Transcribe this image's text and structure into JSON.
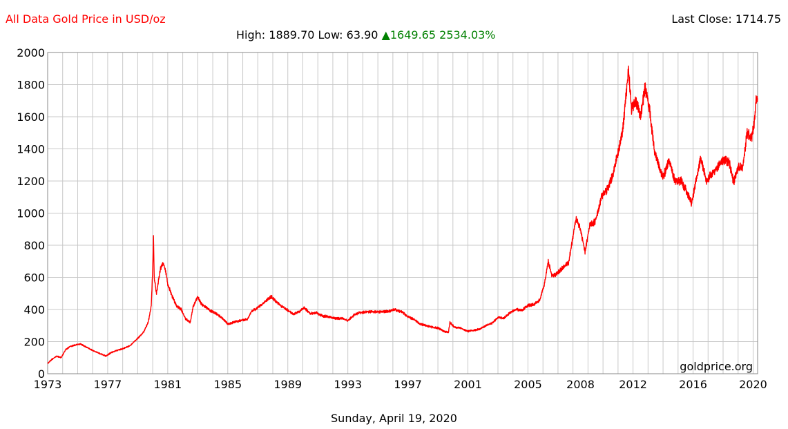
{
  "header": {
    "title": "All Data Gold Price in USD/oz",
    "last_close_label": "Last Close:",
    "last_close_value": "1714.75",
    "high_label": "High:",
    "high_value": "1889.70",
    "low_label": "Low:",
    "low_value": "63.90",
    "change_arrow": "▲",
    "change_value": "1649.65",
    "change_percent": "2534.03%"
  },
  "footer": {
    "date": "Sunday, April 19, 2020"
  },
  "watermark": "goldprice.org",
  "colors": {
    "line": "#ff0000",
    "grid": "#c8c8c8",
    "title": "#ff0000",
    "change": "#008000"
  },
  "chart_data": {
    "type": "line",
    "title": "All Data Gold Price in USD/oz",
    "xlabel": "",
    "ylabel": "",
    "xlim": [
      1973,
      2020.3
    ],
    "ylim": [
      0,
      2000
    ],
    "x_ticks": [
      "1973",
      "1977",
      "1981",
      "1985",
      "1989",
      "1993",
      "1997",
      "2001",
      "2005",
      "2008",
      "2012",
      "2016",
      "2020"
    ],
    "x_tick_years": [
      1973,
      1977,
      1981,
      1985,
      1989,
      1993,
      1997,
      2001,
      2005,
      2008.5,
      2012,
      2016,
      2020
    ],
    "y_ticks": [
      0,
      200,
      400,
      600,
      800,
      1000,
      1200,
      1400,
      1600,
      1800,
      2000
    ],
    "grid": true,
    "series": [
      {
        "values": [
          [
            1973.0,
            65
          ],
          [
            1973.3,
            90
          ],
          [
            1973.6,
            110
          ],
          [
            1973.9,
            100
          ],
          [
            1974.2,
            150
          ],
          [
            1974.5,
            170
          ],
          [
            1974.9,
            180
          ],
          [
            1975.2,
            185
          ],
          [
            1975.6,
            165
          ],
          [
            1976.0,
            145
          ],
          [
            1976.5,
            125
          ],
          [
            1976.9,
            110
          ],
          [
            1977.2,
            130
          ],
          [
            1977.6,
            145
          ],
          [
            1978.0,
            155
          ],
          [
            1978.5,
            175
          ],
          [
            1979.0,
            220
          ],
          [
            1979.4,
            260
          ],
          [
            1979.7,
            320
          ],
          [
            1979.9,
            420
          ],
          [
            1980.0,
            650
          ],
          [
            1980.05,
            850
          ],
          [
            1980.1,
            600
          ],
          [
            1980.25,
            500
          ],
          [
            1980.5,
            650
          ],
          [
            1980.7,
            690
          ],
          [
            1980.85,
            640
          ],
          [
            1981.0,
            560
          ],
          [
            1981.3,
            480
          ],
          [
            1981.6,
            420
          ],
          [
            1981.9,
            400
          ],
          [
            1982.2,
            340
          ],
          [
            1982.5,
            320
          ],
          [
            1982.7,
            420
          ],
          [
            1983.0,
            480
          ],
          [
            1983.2,
            440
          ],
          [
            1983.5,
            415
          ],
          [
            1983.9,
            390
          ],
          [
            1984.3,
            370
          ],
          [
            1984.7,
            340
          ],
          [
            1985.0,
            310
          ],
          [
            1985.4,
            320
          ],
          [
            1985.8,
            330
          ],
          [
            1986.3,
            340
          ],
          [
            1986.6,
            390
          ],
          [
            1987.0,
            410
          ],
          [
            1987.5,
            450
          ],
          [
            1987.9,
            480
          ],
          [
            1988.2,
            450
          ],
          [
            1988.6,
            420
          ],
          [
            1989.0,
            395
          ],
          [
            1989.4,
            370
          ],
          [
            1989.8,
            390
          ],
          [
            1990.1,
            410
          ],
          [
            1990.5,
            375
          ],
          [
            1990.9,
            380
          ],
          [
            1991.3,
            360
          ],
          [
            1991.7,
            355
          ],
          [
            1992.2,
            345
          ],
          [
            1992.6,
            345
          ],
          [
            1993.0,
            330
          ],
          [
            1993.4,
            365
          ],
          [
            1993.8,
            380
          ],
          [
            1994.3,
            385
          ],
          [
            1994.8,
            385
          ],
          [
            1995.3,
            385
          ],
          [
            1995.8,
            390
          ],
          [
            1996.1,
            400
          ],
          [
            1996.6,
            385
          ],
          [
            1997.0,
            355
          ],
          [
            1997.4,
            340
          ],
          [
            1997.8,
            310
          ],
          [
            1998.2,
            300
          ],
          [
            1998.6,
            290
          ],
          [
            1999.0,
            285
          ],
          [
            1999.4,
            265
          ],
          [
            1999.7,
            255
          ],
          [
            1999.8,
            320
          ],
          [
            2000.1,
            290
          ],
          [
            2000.5,
            285
          ],
          [
            2001.0,
            265
          ],
          [
            2001.4,
            270
          ],
          [
            2001.8,
            280
          ],
          [
            2002.2,
            300
          ],
          [
            2002.6,
            315
          ],
          [
            2003.0,
            350
          ],
          [
            2003.4,
            345
          ],
          [
            2003.8,
            380
          ],
          [
            2004.2,
            400
          ],
          [
            2004.6,
            395
          ],
          [
            2005.0,
            425
          ],
          [
            2005.4,
            430
          ],
          [
            2005.8,
            460
          ],
          [
            2006.1,
            560
          ],
          [
            2006.35,
            700
          ],
          [
            2006.6,
            610
          ],
          [
            2006.9,
            620
          ],
          [
            2007.3,
            660
          ],
          [
            2007.7,
            690
          ],
          [
            2008.0,
            850
          ],
          [
            2008.2,
            970
          ],
          [
            2008.5,
            900
          ],
          [
            2008.8,
            760
          ],
          [
            2009.1,
            920
          ],
          [
            2009.5,
            950
          ],
          [
            2009.9,
            1100
          ],
          [
            2010.3,
            1150
          ],
          [
            2010.7,
            1250
          ],
          [
            2011.0,
            1380
          ],
          [
            2011.3,
            1500
          ],
          [
            2011.6,
            1800
          ],
          [
            2011.7,
            1889
          ],
          [
            2011.9,
            1650
          ],
          [
            2012.2,
            1700
          ],
          [
            2012.5,
            1600
          ],
          [
            2012.8,
            1780
          ],
          [
            2013.1,
            1650
          ],
          [
            2013.4,
            1400
          ],
          [
            2013.7,
            1300
          ],
          [
            2014.0,
            1220
          ],
          [
            2014.4,
            1330
          ],
          [
            2014.8,
            1200
          ],
          [
            2015.2,
            1200
          ],
          [
            2015.6,
            1130
          ],
          [
            2015.9,
            1060
          ],
          [
            2016.2,
            1200
          ],
          [
            2016.5,
            1340
          ],
          [
            2016.9,
            1200
          ],
          [
            2017.2,
            1240
          ],
          [
            2017.6,
            1280
          ],
          [
            2018.0,
            1330
          ],
          [
            2018.4,
            1320
          ],
          [
            2018.7,
            1190
          ],
          [
            2019.0,
            1290
          ],
          [
            2019.3,
            1280
          ],
          [
            2019.6,
            1500
          ],
          [
            2019.9,
            1470
          ],
          [
            2020.1,
            1580
          ],
          [
            2020.2,
            1700
          ],
          [
            2020.3,
            1715
          ]
        ]
      }
    ]
  }
}
